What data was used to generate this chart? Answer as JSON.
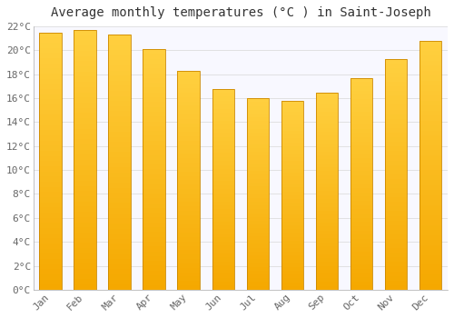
{
  "title": "Average monthly temperatures (°C ) in Saint-Joseph",
  "months": [
    "Jan",
    "Feb",
    "Mar",
    "Apr",
    "May",
    "Jun",
    "Jul",
    "Aug",
    "Sep",
    "Oct",
    "Nov",
    "Dec"
  ],
  "temperatures": [
    21.5,
    21.7,
    21.3,
    20.1,
    18.3,
    16.8,
    16.0,
    15.8,
    16.5,
    17.7,
    19.3,
    20.8
  ],
  "bar_color_bottom": "#F5A800",
  "bar_color_top": "#FFD040",
  "bar_edge_color": "#CC8800",
  "background_color": "#FFFFFF",
  "plot_bg_color": "#F8F8FF",
  "grid_color": "#DDDDDD",
  "ylim": [
    0,
    22
  ],
  "yticks": [
    0,
    2,
    4,
    6,
    8,
    10,
    12,
    14,
    16,
    18,
    20,
    22
  ],
  "title_fontsize": 10,
  "tick_fontsize": 8,
  "title_color": "#333333",
  "tick_color": "#666666",
  "bar_width": 0.65
}
